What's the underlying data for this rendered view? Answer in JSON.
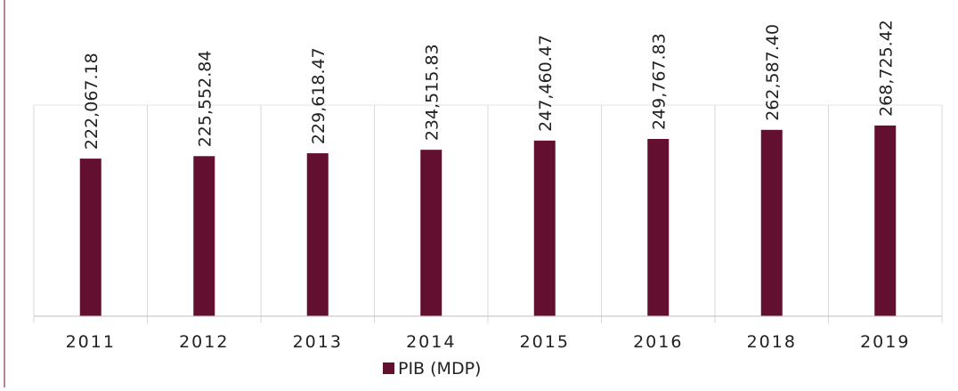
{
  "chart_data": {
    "type": "bar",
    "categories": [
      "2011",
      "2012",
      "2013",
      "2014",
      "2015",
      "2016",
      "2018",
      "2019"
    ],
    "series": [
      {
        "name": "PIB (MDP)",
        "color": "#630f30",
        "values": [
          222067.18,
          225552.84,
          229618.47,
          234515.83,
          247460.47,
          249767.83,
          262587.4,
          268725.42
        ],
        "value_labels": [
          "222,067.18",
          "225,552.84",
          "229,618.47",
          "234,515.83",
          "247,460.47",
          "249,767.83",
          "262,587.40",
          "268,725.42"
        ]
      }
    ],
    "legend": "bottom"
  }
}
